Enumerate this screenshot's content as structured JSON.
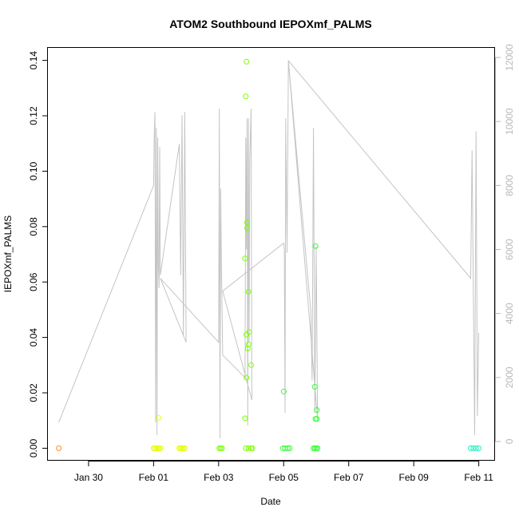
{
  "chart_data": {
    "type": "scatter",
    "title": "ATOM2 Southbound IEPOXmf_PALMS",
    "xlabel": "Date",
    "ylabel": "IEPOXmf_PALMS",
    "xlim": [
      "2017-01-28T18:00",
      "2017-02-11T12:00"
    ],
    "ylim": [
      -0.0045,
      0.1445
    ],
    "ylim_right": [
      -600,
      12300
    ],
    "x_ticks": [
      {
        "date": "2017-01-30T00:00",
        "label": "Jan 30"
      },
      {
        "date": "2017-02-01T00:00",
        "label": "Feb 01"
      },
      {
        "date": "2017-02-03T00:00",
        "label": "Feb 03"
      },
      {
        "date": "2017-02-05T00:00",
        "label": "Feb 05"
      },
      {
        "date": "2017-02-07T00:00",
        "label": "Feb 07"
      },
      {
        "date": "2017-02-09T00:00",
        "label": "Feb 09"
      },
      {
        "date": "2017-02-11T00:00",
        "label": "Feb 11"
      }
    ],
    "y_ticks": [
      "0.00",
      "0.02",
      "0.04",
      "0.06",
      "0.08",
      "0.10",
      "0.12",
      "0.14"
    ],
    "y_ticks_right": [
      "0",
      "2000",
      "4000",
      "6000",
      "8000",
      "10000",
      "12000"
    ],
    "grid": false,
    "series": [
      {
        "color": "#ff8c1a",
        "points": [
          [
            "2017-01-29T02:00",
            0.0
          ]
        ]
      },
      {
        "color": "#e6ff00",
        "points": [
          [
            "2017-02-01T00:00",
            0.0
          ],
          [
            "2017-02-01T01:00",
            0.0
          ],
          [
            "2017-02-01T02:00",
            0.0
          ],
          [
            "2017-02-01T03:00",
            0.0
          ],
          [
            "2017-02-01T04:00",
            0.0
          ],
          [
            "2017-02-01T05:00",
            0.0
          ],
          [
            "2017-02-01T03:30",
            0.011
          ],
          [
            "2017-02-01T19:00",
            0.0
          ],
          [
            "2017-02-01T20:00",
            0.0
          ],
          [
            "2017-02-01T21:00",
            0.0
          ],
          [
            "2017-02-01T22:00",
            0.0
          ],
          [
            "2017-02-01T23:00",
            0.0
          ]
        ]
      },
      {
        "color": "#7cff00",
        "points": [
          [
            "2017-02-03T00:30",
            0.0
          ],
          [
            "2017-02-03T01:30",
            0.0
          ],
          [
            "2017-02-03T02:30",
            0.0
          ],
          [
            "2017-02-03T20:00",
            0.0
          ],
          [
            "2017-02-03T22:00",
            0.0
          ],
          [
            "2017-02-04T00:00",
            0.0
          ],
          [
            "2017-02-04T01:00",
            0.0
          ],
          [
            "2017-02-03T20:30",
            0.1395
          ],
          [
            "2017-02-03T20:00",
            0.127
          ],
          [
            "2017-02-03T21:00",
            0.0815
          ],
          [
            "2017-02-03T21:00",
            0.0795
          ],
          [
            "2017-02-03T19:30",
            0.0685
          ],
          [
            "2017-02-03T22:00",
            0.0565
          ],
          [
            "2017-02-03T22:30",
            0.042
          ],
          [
            "2017-02-03T20:30",
            0.041
          ],
          [
            "2017-02-03T22:00",
            0.0375
          ],
          [
            "2017-02-03T21:30",
            0.036
          ],
          [
            "2017-02-04T00:00",
            0.03
          ],
          [
            "2017-02-03T20:30",
            0.0255
          ],
          [
            "2017-02-03T19:30",
            0.0108
          ]
        ]
      },
      {
        "color": "#33ff33",
        "points": [
          [
            "2017-02-04T23:30",
            0.0
          ],
          [
            "2017-02-05T01:00",
            0.0
          ],
          [
            "2017-02-05T03:00",
            0.0
          ],
          [
            "2017-02-05T04:30",
            0.0
          ],
          [
            "2017-02-05T00:00",
            0.0205
          ],
          [
            "2017-02-05T22:00",
            0.0
          ],
          [
            "2017-02-05T23:00",
            0.0
          ],
          [
            "2017-02-06T00:00",
            0.0
          ],
          [
            "2017-02-06T01:00",
            0.0
          ],
          [
            "2017-02-05T23:30",
            0.073
          ],
          [
            "2017-02-05T23:00",
            0.0222
          ],
          [
            "2017-02-06T00:30",
            0.0138
          ],
          [
            "2017-02-06T00:30",
            0.0106
          ],
          [
            "2017-02-05T23:30",
            0.0106
          ]
        ]
      },
      {
        "color": "#22f0c0",
        "points": [
          [
            "2017-02-10T18:00",
            0.0
          ],
          [
            "2017-02-10T20:00",
            0.0
          ],
          [
            "2017-02-10T22:00",
            0.0
          ],
          [
            "2017-02-11T00:00",
            0.0
          ]
        ]
      }
    ],
    "secondary_series": {
      "color": "#c4c4c4",
      "points": [
        [
          "2017-01-29T02:00",
          600
        ],
        [
          "2017-02-01T00:00",
          8000
        ],
        [
          "2017-02-01T00:30",
          9600
        ],
        [
          "2017-02-01T01:00",
          10300
        ],
        [
          "2017-02-01T01:30",
          600
        ],
        [
          "2017-02-01T02:00",
          9800
        ],
        [
          "2017-02-01T02:30",
          200
        ],
        [
          "2017-02-01T03:00",
          9500
        ],
        [
          "2017-02-01T03:30",
          5500
        ],
        [
          "2017-02-01T04:00",
          4800
        ],
        [
          "2017-02-01T04:30",
          9200
        ],
        [
          "2017-02-01T05:00",
          5200
        ],
        [
          "2017-02-01T19:00",
          9300
        ],
        [
          "2017-02-01T20:00",
          5200
        ],
        [
          "2017-02-01T21:00",
          10200
        ],
        [
          "2017-02-01T22:00",
          3300
        ],
        [
          "2017-02-01T23:00",
          10300
        ],
        [
          "2017-02-02T00:00",
          3100
        ],
        [
          "2017-02-01T05:00",
          5100
        ],
        [
          "2017-02-03T00:00",
          3100
        ],
        [
          "2017-02-03T00:30",
          10400
        ],
        [
          "2017-02-03T01:00",
          100
        ],
        [
          "2017-02-03T01:30",
          7900
        ],
        [
          "2017-02-03T02:00",
          5800
        ],
        [
          "2017-02-03T03:00",
          2700
        ],
        [
          "2017-02-03T19:30",
          2000
        ],
        [
          "2017-02-03T20:00",
          9500
        ],
        [
          "2017-02-03T20:30",
          6000
        ],
        [
          "2017-02-03T21:00",
          10100
        ],
        [
          "2017-02-03T21:30",
          500
        ],
        [
          "2017-02-03T22:00",
          10100
        ],
        [
          "2017-02-03T22:30",
          3100
        ],
        [
          "2017-02-03T23:00",
          8800
        ],
        [
          "2017-02-04T00:00",
          10400
        ],
        [
          "2017-02-04T00:30",
          1300
        ],
        [
          "2017-02-03T03:00",
          4700
        ],
        [
          "2017-02-05T00:00",
          6200
        ],
        [
          "2017-02-05T00:30",
          6000
        ],
        [
          "2017-02-05T01:00",
          900
        ],
        [
          "2017-02-05T01:30",
          10100
        ],
        [
          "2017-02-05T02:30",
          5900
        ],
        [
          "2017-02-05T03:30",
          11900
        ],
        [
          "2017-02-05T20:00",
          4100
        ],
        [
          "2017-02-05T21:00",
          1900
        ],
        [
          "2017-02-05T22:00",
          9800
        ],
        [
          "2017-02-05T23:00",
          900
        ],
        [
          "2017-02-06T00:00",
          6100
        ],
        [
          "2017-02-06T01:00",
          700
        ],
        [
          "2017-02-05T03:30",
          11900
        ],
        [
          "2017-02-10T18:00",
          5100
        ],
        [
          "2017-02-10T19:00",
          9100
        ],
        [
          "2017-02-10T21:00",
          200
        ],
        [
          "2017-02-10T22:00",
          9700
        ],
        [
          "2017-02-10T23:00",
          800
        ],
        [
          "2017-02-11T00:00",
          3400
        ]
      ]
    }
  }
}
